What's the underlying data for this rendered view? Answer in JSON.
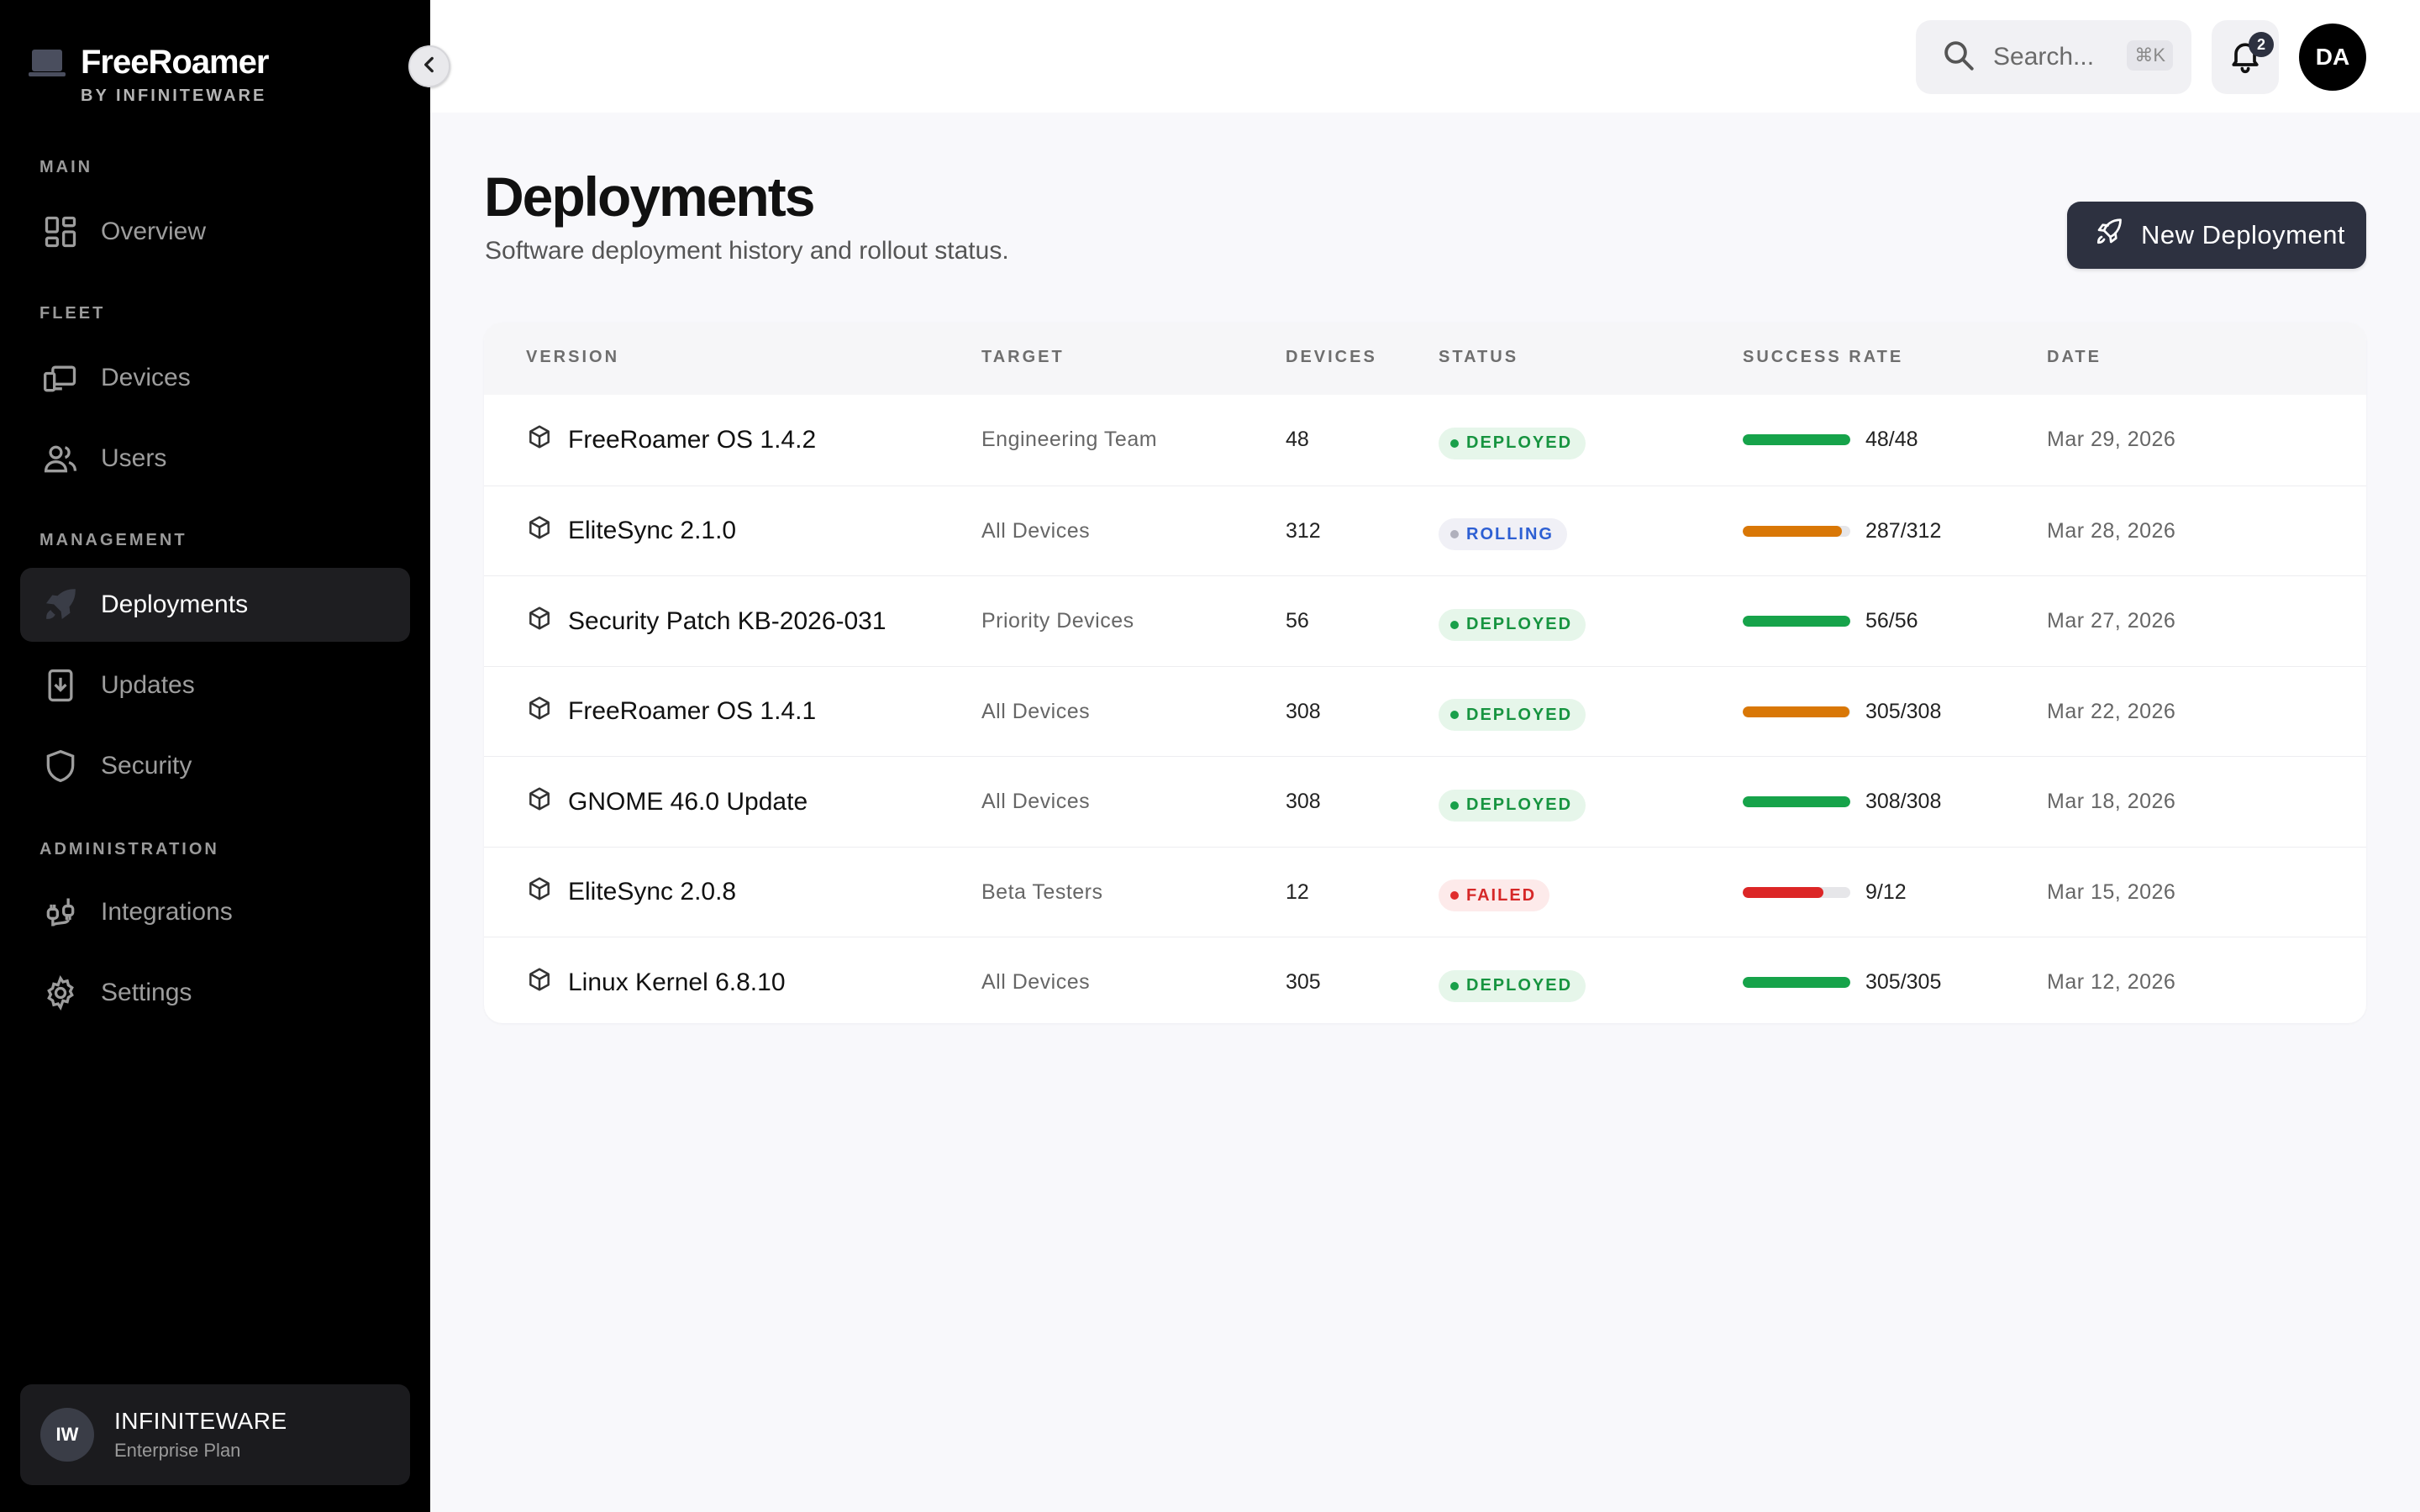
{
  "brand": {
    "name": "FreeRoamer",
    "sub": "BY INFINITEWARE"
  },
  "sidebar": {
    "sections": [
      "MAIN",
      "FLEET",
      "MANAGEMENT",
      "ADMINISTRATION"
    ],
    "items": [
      {
        "label": "Overview",
        "icon": "grid-icon"
      },
      {
        "label": "Devices",
        "icon": "devices-icon"
      },
      {
        "label": "Users",
        "icon": "users-icon"
      },
      {
        "label": "Deployments",
        "icon": "rocket-icon",
        "active": true
      },
      {
        "label": "Updates",
        "icon": "download-icon"
      },
      {
        "label": "Security",
        "icon": "shield-icon"
      },
      {
        "label": "Integrations",
        "icon": "plug-icon"
      },
      {
        "label": "Settings",
        "icon": "gear-icon"
      }
    ],
    "org": {
      "initials": "IW",
      "name": "INFINITEWARE",
      "plan": "Enterprise Plan"
    }
  },
  "topbar": {
    "search_placeholder": "Search...",
    "search_shortcut": "⌘K",
    "notification_count": "2",
    "user_initials": "DA"
  },
  "page": {
    "title": "Deployments",
    "subtitle": "Software deployment history and rollout status.",
    "new_button": "New Deployment"
  },
  "table": {
    "columns": [
      "VERSION",
      "TARGET",
      "DEVICES",
      "STATUS",
      "SUCCESS RATE",
      "DATE"
    ],
    "rows": [
      {
        "version": "FreeRoamer OS 1.4.2",
        "target": "Engineering Team",
        "devices": "48",
        "status": "DEPLOYED",
        "rate": "48/48",
        "rate_fraction": 1.0,
        "date": "Mar 29, 2026"
      },
      {
        "version": "EliteSync 2.1.0",
        "target": "All Devices",
        "devices": "312",
        "status": "ROLLING",
        "rate": "287/312",
        "rate_fraction": 0.92,
        "date": "Mar 28, 2026"
      },
      {
        "version": "Security Patch KB-2026-031",
        "target": "Priority Devices",
        "devices": "56",
        "status": "DEPLOYED",
        "rate": "56/56",
        "rate_fraction": 1.0,
        "date": "Mar 27, 2026"
      },
      {
        "version": "FreeRoamer OS 1.4.1",
        "target": "All Devices",
        "devices": "308",
        "status": "DEPLOYED",
        "rate": "305/308",
        "rate_fraction": 0.99,
        "date": "Mar 22, 2026"
      },
      {
        "version": "GNOME 46.0 Update",
        "target": "All Devices",
        "devices": "308",
        "status": "DEPLOYED",
        "rate": "308/308",
        "rate_fraction": 1.0,
        "date": "Mar 18, 2026"
      },
      {
        "version": "EliteSync 2.0.8",
        "target": "Beta Testers",
        "devices": "12",
        "status": "FAILED",
        "rate": "9/12",
        "rate_fraction": 0.75,
        "date": "Mar 15, 2026"
      },
      {
        "version": "Linux Kernel 6.8.10",
        "target": "All Devices",
        "devices": "305",
        "status": "DEPLOYED",
        "rate": "305/305",
        "rate_fraction": 1.0,
        "date": "Mar 12, 2026"
      }
    ]
  },
  "colors": {
    "rate_full": "#16a34a",
    "rate_partial": "#d97706",
    "rate_failed": "#dc2626",
    "accent_button": "#2d3140"
  }
}
